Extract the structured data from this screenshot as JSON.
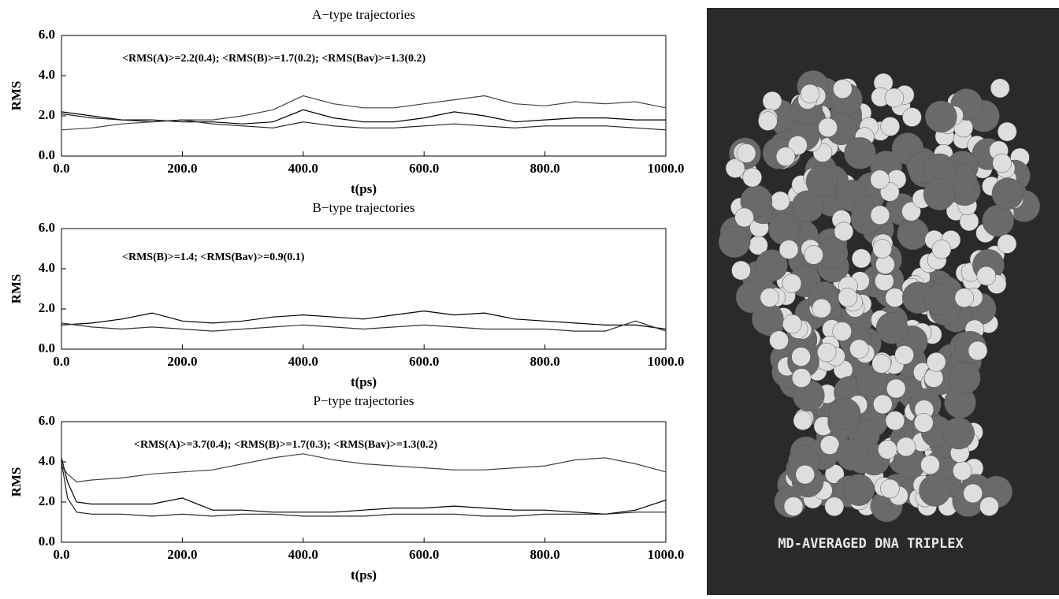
{
  "chart_data": [
    {
      "type": "line",
      "title": "A−type trajectories",
      "xlabel": "t(ps)",
      "ylabel": "RMS",
      "annotation": "<RMS(A)>=2.2(0.4); <RMS(B)>=1.7(0.2); <RMS(Bav)>=1.3(0.2)",
      "xlim": [
        0,
        1000
      ],
      "ylim": [
        0,
        6
      ],
      "xticks": [
        {
          "value": 0,
          "label": "0.0"
        },
        {
          "value": 200,
          "label": "200.0"
        },
        {
          "value": 400,
          "label": "400.0"
        },
        {
          "value": 600,
          "label": "600.0"
        },
        {
          "value": 800,
          "label": "800.0"
        },
        {
          "value": 1000,
          "label": "1000.0"
        }
      ],
      "yticks": [
        {
          "value": 0,
          "label": "0.0"
        },
        {
          "value": 2,
          "label": "2.0"
        },
        {
          "value": 4,
          "label": "4.0"
        },
        {
          "value": 6,
          "label": "6.0"
        }
      ],
      "x": [
        0,
        50,
        100,
        150,
        200,
        250,
        300,
        350,
        400,
        450,
        500,
        550,
        600,
        650,
        700,
        750,
        800,
        850,
        900,
        950,
        1000
      ],
      "series": [
        {
          "color": "#444444",
          "values": [
            1.3,
            1.4,
            1.6,
            1.7,
            1.8,
            1.8,
            2.0,
            2.3,
            3.0,
            2.6,
            2.4,
            2.4,
            2.6,
            2.8,
            3.0,
            2.6,
            2.5,
            2.7,
            2.6,
            2.7,
            2.4
          ]
        },
        {
          "color": "#000000",
          "values": [
            2.2,
            2.0,
            1.8,
            1.8,
            1.7,
            1.7,
            1.6,
            1.7,
            2.3,
            1.9,
            1.7,
            1.7,
            1.9,
            2.2,
            2.0,
            1.7,
            1.8,
            1.9,
            1.9,
            1.8,
            1.8
          ]
        },
        {
          "color": "#222222",
          "values": [
            2.1,
            1.9,
            1.8,
            1.7,
            1.8,
            1.6,
            1.5,
            1.4,
            1.7,
            1.5,
            1.4,
            1.4,
            1.5,
            1.6,
            1.5,
            1.4,
            1.5,
            1.5,
            1.5,
            1.4,
            1.3
          ]
        }
      ]
    },
    {
      "type": "line",
      "title": "B−type trajectories",
      "xlabel": "t(ps)",
      "ylabel": "RMS",
      "annotation": "<RMS(B)>=1.4; <RMS(Bav)>=0.9(0.1)",
      "xlim": [
        0,
        1000
      ],
      "ylim": [
        0,
        6
      ],
      "xticks": [
        {
          "value": 0,
          "label": "0.0"
        },
        {
          "value": 200,
          "label": "200.0"
        },
        {
          "value": 400,
          "label": "400.0"
        },
        {
          "value": 600,
          "label": "600.0"
        },
        {
          "value": 800,
          "label": "800.0"
        },
        {
          "value": 1000,
          "label": "1000.0"
        }
      ],
      "yticks": [
        {
          "value": 0,
          "label": "0.0"
        },
        {
          "value": 2,
          "label": "2.0"
        },
        {
          "value": 4,
          "label": "4.0"
        },
        {
          "value": 6,
          "label": "6.0"
        }
      ],
      "x": [
        0,
        50,
        100,
        150,
        200,
        250,
        300,
        350,
        400,
        450,
        500,
        550,
        600,
        650,
        700,
        750,
        800,
        850,
        900,
        950,
        1000
      ],
      "series": [
        {
          "color": "#000000",
          "values": [
            1.2,
            1.3,
            1.5,
            1.8,
            1.4,
            1.3,
            1.4,
            1.6,
            1.7,
            1.6,
            1.5,
            1.7,
            1.9,
            1.7,
            1.8,
            1.5,
            1.4,
            1.3,
            1.2,
            1.2,
            1.0
          ]
        },
        {
          "color": "#333333",
          "values": [
            1.3,
            1.1,
            1.0,
            1.1,
            1.0,
            0.9,
            1.0,
            1.1,
            1.2,
            1.1,
            1.0,
            1.1,
            1.2,
            1.1,
            1.0,
            1.0,
            1.0,
            0.9,
            0.9,
            1.4,
            0.9
          ]
        }
      ]
    },
    {
      "type": "line",
      "title": "P−type trajectories",
      "xlabel": "t(ps)",
      "ylabel": "RMS",
      "annotation": "<RMS(A)>=3.7(0.4); <RMS(B)>=1.7(0.3); <RMS(Bav)>=1.3(0.2)",
      "xlim": [
        0,
        1000
      ],
      "ylim": [
        0,
        6
      ],
      "xticks": [
        {
          "value": 0,
          "label": "0.0"
        },
        {
          "value": 200,
          "label": "200.0"
        },
        {
          "value": 400,
          "label": "400.0"
        },
        {
          "value": 600,
          "label": "600.0"
        },
        {
          "value": 800,
          "label": "800.0"
        },
        {
          "value": 1000,
          "label": "1000.0"
        }
      ],
      "yticks": [
        {
          "value": 0,
          "label": "0.0"
        },
        {
          "value": 2,
          "label": "2.0"
        },
        {
          "value": 4,
          "label": "4.0"
        },
        {
          "value": 6,
          "label": "6.0"
        }
      ],
      "x": [
        0,
        10,
        25,
        50,
        100,
        150,
        200,
        250,
        300,
        350,
        400,
        450,
        500,
        550,
        600,
        650,
        700,
        750,
        800,
        850,
        900,
        950,
        1000
      ],
      "series": [
        {
          "color": "#444444",
          "values": [
            3.8,
            3.4,
            3.0,
            3.1,
            3.2,
            3.4,
            3.5,
            3.6,
            3.9,
            4.2,
            4.4,
            4.1,
            3.9,
            3.8,
            3.7,
            3.6,
            3.6,
            3.7,
            3.8,
            4.1,
            4.2,
            3.9,
            3.5
          ]
        },
        {
          "color": "#000000",
          "values": [
            4.2,
            3.0,
            2.0,
            1.9,
            1.9,
            1.9,
            2.2,
            1.6,
            1.6,
            1.5,
            1.5,
            1.5,
            1.6,
            1.7,
            1.7,
            1.8,
            1.7,
            1.6,
            1.6,
            1.5,
            1.4,
            1.6,
            2.1
          ]
        },
        {
          "color": "#222222",
          "values": [
            4.0,
            2.2,
            1.5,
            1.4,
            1.4,
            1.3,
            1.4,
            1.3,
            1.4,
            1.4,
            1.3,
            1.3,
            1.3,
            1.4,
            1.4,
            1.4,
            1.3,
            1.3,
            1.4,
            1.4,
            1.4,
            1.5,
            1.5
          ]
        }
      ]
    }
  ],
  "image": {
    "caption": "MD-AVERAGED DNA TRIPLEX"
  }
}
